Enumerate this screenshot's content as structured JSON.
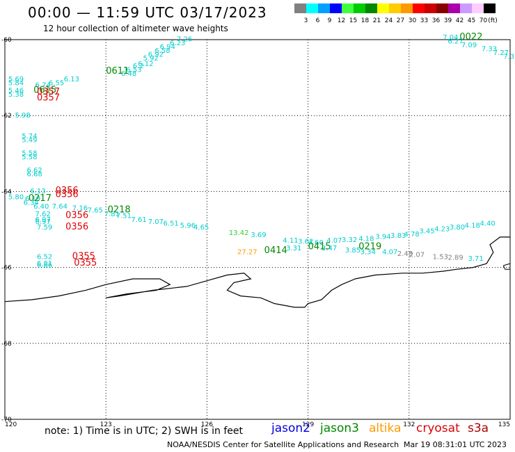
{
  "header": {
    "title": "00:00 — 11:59 UTC 03/17/2023",
    "subtitle": "12 hour collection of altimeter wave heights"
  },
  "legend": {
    "unit": "(ft)",
    "bins": [
      {
        "label": "3",
        "color": "#808080"
      },
      {
        "label": "6",
        "color": "#00ffff"
      },
      {
        "label": "9",
        "color": "#00a0ff"
      },
      {
        "label": "12",
        "color": "#0000ff"
      },
      {
        "label": "15",
        "color": "#40ff40"
      },
      {
        "label": "18",
        "color": "#00cc00"
      },
      {
        "label": "21",
        "color": "#008800"
      },
      {
        "label": "24",
        "color": "#ffff00"
      },
      {
        "label": "27",
        "color": "#ffcc00"
      },
      {
        "label": "30",
        "color": "#ff9900"
      },
      {
        "label": "33",
        "color": "#ff0000"
      },
      {
        "label": "36",
        "color": "#cc0000"
      },
      {
        "label": "39",
        "color": "#880000"
      },
      {
        "label": "42",
        "color": "#aa00aa"
      },
      {
        "label": "45",
        "color": "#cc99ff"
      },
      {
        "label": "70",
        "color": "#ffccff"
      },
      {
        "label": "",
        "color": "#000000"
      }
    ]
  },
  "axes": {
    "lon_ticks": [
      "120",
      "123",
      "126",
      "129",
      "132",
      "135"
    ],
    "lat_ticks": [
      "-60",
      "-62",
      "-64",
      "-66",
      "-68",
      "-70"
    ],
    "lon_range": [
      120,
      135
    ],
    "lat_range": [
      -60,
      -70
    ]
  },
  "wave_labels": [
    {
      "t": "7.26",
      "c": "#00cccc",
      "lon": 125.1,
      "lat": -60.05
    },
    {
      "t": "6.23",
      "c": "#00cccc",
      "lon": 124.9,
      "lat": -60.15
    },
    {
      "t": "6.94",
      "c": "#00cccc",
      "lon": 124.6,
      "lat": -60.25
    },
    {
      "t": "6.58",
      "c": "#00cccc",
      "lon": 124.45,
      "lat": -60.35
    },
    {
      "t": "6.92",
      "c": "#00cccc",
      "lon": 124.25,
      "lat": -60.45
    },
    {
      "t": "5.92",
      "c": "#00cccc",
      "lon": 124.1,
      "lat": -60.55
    },
    {
      "t": "6.12",
      "c": "#00cccc",
      "lon": 123.95,
      "lat": -60.7
    },
    {
      "t": "6.2",
      "c": "#00cccc",
      "lon": 123.8,
      "lat": -60.75
    },
    {
      "t": "6.53",
      "c": "#00cccc",
      "lon": 123.6,
      "lat": -60.85
    },
    {
      "t": "6.48",
      "c": "#00cccc",
      "lon": 123.45,
      "lat": -60.95
    },
    {
      "t": "0611",
      "c": "#008800",
      "lon": 123.0,
      "lat": -60.9,
      "big": true
    },
    {
      "t": "6.13",
      "c": "#00cccc",
      "lon": 121.75,
      "lat": -61.1
    },
    {
      "t": "5.69",
      "c": "#00cccc",
      "lon": 120.1,
      "lat": -61.1
    },
    {
      "t": "5.84",
      "c": "#00cccc",
      "lon": 120.1,
      "lat": -61.2
    },
    {
      "t": "6.74",
      "c": "#00cccc",
      "lon": 120.9,
      "lat": -61.25
    },
    {
      "t": "6.55",
      "c": "#00cccc",
      "lon": 121.3,
      "lat": -61.2
    },
    {
      "t": "5.46",
      "c": "#00cccc",
      "lon": 120.1,
      "lat": -61.4
    },
    {
      "t": "5.38",
      "c": "#00cccc",
      "lon": 120.1,
      "lat": -61.5
    },
    {
      "t": "0615",
      "c": "#008800",
      "lon": 120.85,
      "lat": -61.4,
      "big": true
    },
    {
      "t": "0357",
      "c": "#dd0000",
      "lon": 120.95,
      "lat": -61.45,
      "big": true
    },
    {
      "t": "0357",
      "c": "#dd0000",
      "lon": 120.95,
      "lat": -61.6,
      "big": true
    },
    {
      "t": "5.98",
      "c": "#00cccc",
      "lon": 120.3,
      "lat": -62.05
    },
    {
      "t": "5.74",
      "c": "#00cccc",
      "lon": 120.5,
      "lat": -62.6
    },
    {
      "t": "5.49",
      "c": "#00cccc",
      "lon": 120.5,
      "lat": -62.7
    },
    {
      "t": "5.58",
      "c": "#00cccc",
      "lon": 120.5,
      "lat": -63.05
    },
    {
      "t": "5.58",
      "c": "#00cccc",
      "lon": 120.5,
      "lat": -63.15
    },
    {
      "t": "6.62",
      "c": "#00cccc",
      "lon": 120.65,
      "lat": -63.5
    },
    {
      "t": "6.68",
      "c": "#00cccc",
      "lon": 120.65,
      "lat": -63.6
    },
    {
      "t": "6.13",
      "c": "#00cccc",
      "lon": 120.75,
      "lat": -64.05
    },
    {
      "t": "0356",
      "c": "#dd0000",
      "lon": 121.5,
      "lat": -64.05,
      "big": true
    },
    {
      "t": "0356",
      "c": "#dd0000",
      "lon": 121.5,
      "lat": -64.15,
      "big": true
    },
    {
      "t": "5.80",
      "c": "#00cccc",
      "lon": 120.1,
      "lat": -64.2
    },
    {
      "t": "6.19",
      "c": "#00cccc",
      "lon": 120.6,
      "lat": -64.25
    },
    {
      "t": "0217",
      "c": "#008800",
      "lon": 120.7,
      "lat": -64.25,
      "big": true
    },
    {
      "t": "6.34",
      "c": "#00cccc",
      "lon": 120.55,
      "lat": -64.35
    },
    {
      "t": "6.40",
      "c": "#00cccc",
      "lon": 120.85,
      "lat": -64.45
    },
    {
      "t": "7.64",
      "c": "#00cccc",
      "lon": 121.4,
      "lat": -64.45
    },
    {
      "t": "7.16",
      "c": "#00cccc",
      "lon": 122.0,
      "lat": -64.5
    },
    {
      "t": "7.65",
      "c": "#00cccc",
      "lon": 122.45,
      "lat": -64.55
    },
    {
      "t": "0218",
      "c": "#008800",
      "lon": 123.05,
      "lat": -64.55,
      "big": true
    },
    {
      "t": "7.62",
      "c": "#00cccc",
      "lon": 120.9,
      "lat": -64.65
    },
    {
      "t": "7.81",
      "c": "#00cccc",
      "lon": 122.95,
      "lat": -64.65
    },
    {
      "t": "7.51",
      "c": "#00cccc",
      "lon": 123.3,
      "lat": -64.7
    },
    {
      "t": "0356",
      "c": "#dd0000",
      "lon": 121.8,
      "lat": -64.7,
      "big": true
    },
    {
      "t": "6.97",
      "c": "#00cccc",
      "lon": 120.9,
      "lat": -64.8
    },
    {
      "t": "6.97",
      "c": "#00cccc",
      "lon": 120.9,
      "lat": -64.85
    },
    {
      "t": "7.61",
      "c": "#00cccc",
      "lon": 123.75,
      "lat": -64.8
    },
    {
      "t": "7.07",
      "c": "#00cccc",
      "lon": 124.25,
      "lat": -64.85
    },
    {
      "t": "6.51",
      "c": "#00cccc",
      "lon": 124.7,
      "lat": -64.9
    },
    {
      "t": "5.96",
      "c": "#00cccc",
      "lon": 125.2,
      "lat": -64.95
    },
    {
      "t": "4.65",
      "c": "#00cccc",
      "lon": 125.6,
      "lat": -65.0
    },
    {
      "t": "0356",
      "c": "#dd0000",
      "lon": 121.8,
      "lat": -65.0,
      "big": true
    },
    {
      "t": "7.59",
      "c": "#00cccc",
      "lon": 120.95,
      "lat": -65.0
    },
    {
      "t": "13.42",
      "c": "#33cc33",
      "lon": 126.65,
      "lat": -65.15
    },
    {
      "t": "3.69",
      "c": "#00cccc",
      "lon": 127.3,
      "lat": -65.2
    },
    {
      "t": "4.11",
      "c": "#00cccc",
      "lon": 128.25,
      "lat": -65.35
    },
    {
      "t": "3.62",
      "c": "#00cccc",
      "lon": 128.7,
      "lat": -65.38
    },
    {
      "t": "4.60",
      "c": "#00cccc",
      "lon": 129.0,
      "lat": -65.4
    },
    {
      "t": "4.07",
      "c": "#00cccc",
      "lon": 129.55,
      "lat": -65.35
    },
    {
      "t": "3.32",
      "c": "#00cccc",
      "lon": 130.0,
      "lat": -65.33
    },
    {
      "t": "4.18",
      "c": "#00cccc",
      "lon": 130.5,
      "lat": -65.3
    },
    {
      "t": "3.94",
      "c": "#00cccc",
      "lon": 131.0,
      "lat": -65.25
    },
    {
      "t": "3.83",
      "c": "#00cccc",
      "lon": 131.45,
      "lat": -65.22
    },
    {
      "t": "4.78",
      "c": "#00cccc",
      "lon": 131.85,
      "lat": -65.18
    },
    {
      "t": "3.45",
      "c": "#00cccc",
      "lon": 132.3,
      "lat": -65.1
    },
    {
      "t": "4.23",
      "c": "#00cccc",
      "lon": 132.75,
      "lat": -65.05
    },
    {
      "t": "3.80",
      "c": "#00cccc",
      "lon": 133.2,
      "lat": -65.0
    },
    {
      "t": "4.18",
      "c": "#00cccc",
      "lon": 133.65,
      "lat": -64.95
    },
    {
      "t": "4.40",
      "c": "#00cccc",
      "lon": 134.1,
      "lat": -64.9
    },
    {
      "t": "3.31",
      "c": "#00cccc",
      "lon": 128.35,
      "lat": -65.55
    },
    {
      "t": "0415",
      "c": "#008800",
      "lon": 129.0,
      "lat": -65.52,
      "big": true
    },
    {
      "t": "3.47",
      "c": "#00cccc",
      "lon": 129.4,
      "lat": -65.55
    },
    {
      "t": "0219",
      "c": "#008800",
      "lon": 130.5,
      "lat": -65.52,
      "big": true
    },
    {
      "t": "3.85",
      "c": "#00cccc",
      "lon": 130.1,
      "lat": -65.6
    },
    {
      "t": "3.34",
      "c": "#00cccc",
      "lon": 130.55,
      "lat": -65.65
    },
    {
      "t": "4.07",
      "c": "#00cccc",
      "lon": 131.2,
      "lat": -65.65
    },
    {
      "t": "27.27",
      "c": "#ff9900",
      "lon": 126.9,
      "lat": -65.65
    },
    {
      "t": "0414",
      "c": "#008800",
      "lon": 127.7,
      "lat": -65.62,
      "big": true
    },
    {
      "t": "2.48",
      "c": "#808080",
      "lon": 131.65,
      "lat": -65.7
    },
    {
      "t": "2.07",
      "c": "#808080",
      "lon": 132.0,
      "lat": -65.72
    },
    {
      "t": "1.53",
      "c": "#808080",
      "lon": 132.7,
      "lat": -65.78
    },
    {
      "t": "2.89",
      "c": "#808080",
      "lon": 133.15,
      "lat": -65.8
    },
    {
      "t": "3.71",
      "c": "#00cccc",
      "lon": 133.75,
      "lat": -65.82
    },
    {
      "t": "6.52",
      "c": "#00cccc",
      "lon": 120.95,
      "lat": -65.78
    },
    {
      "t": "0355",
      "c": "#dd0000",
      "lon": 122.0,
      "lat": -65.78,
      "big": true
    },
    {
      "t": "6.81",
      "c": "#00cccc",
      "lon": 120.95,
      "lat": -65.95
    },
    {
      "t": "0355",
      "c": "#dd0000",
      "lon": 122.05,
      "lat": -65.95,
      "big": true
    },
    {
      "t": "6.86",
      "c": "#00cccc",
      "lon": 120.95,
      "lat": -66.0
    },
    {
      "t": "7.04",
      "c": "#00cccc",
      "lon": 133.0,
      "lat": -60.0
    },
    {
      "t": "0022",
      "c": "#008800",
      "lon": 133.5,
      "lat": -60.0,
      "big": true
    },
    {
      "t": "6.27",
      "c": "#00cccc",
      "lon": 133.15,
      "lat": -60.1
    },
    {
      "t": "7.09",
      "c": "#00cccc",
      "lon": 133.55,
      "lat": -60.2
    },
    {
      "t": "7.33",
      "c": "#00cccc",
      "lon": 134.15,
      "lat": -60.3
    },
    {
      "t": "7.27",
      "c": "#00cccc",
      "lon": 134.5,
      "lat": -60.4
    },
    {
      "t": "7.3",
      "c": "#00cccc",
      "lon": 134.8,
      "lat": -60.5
    }
  ],
  "footer": {
    "note": "note:  1) Time is in UTC; 2) SWH is in feet",
    "satellites": [
      {
        "name": "jason2",
        "color": "#0000dd"
      },
      {
        "name": "jason3",
        "color": "#008800"
      },
      {
        "name": "altika",
        "color": "#ff9900"
      },
      {
        "name": "cryosat",
        "color": "#dd0000"
      },
      {
        "name": "s3a",
        "color": "#aa0000"
      }
    ],
    "credit": "NOAA/NESDIS Center for Satellite Applications and Research",
    "timestamp": "Mar 19 08:31:01 UTC 2023"
  }
}
